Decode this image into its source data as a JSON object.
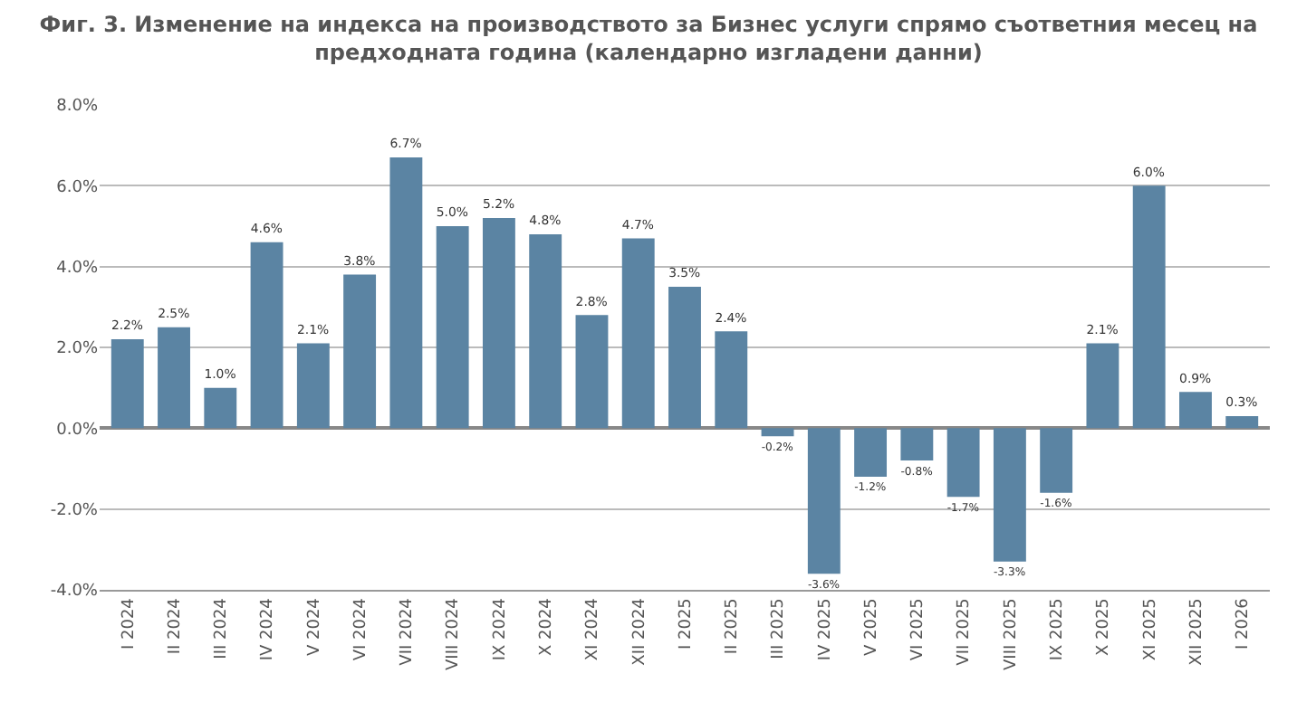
{
  "chart_data": {
    "type": "bar",
    "title": "Фиг. 3. Изменение на индекса на производството за Бизнес услуги спрямо съответния месец на предходната година (календарно изгладени данни)",
    "categories": [
      "I 2024",
      "II 2024",
      "III 2024",
      "IV 2024",
      "V 2024",
      "VI 2024",
      "VII 2024",
      "VIII 2024",
      "IX 2024",
      "X 2024",
      "XI 2024",
      "XII 2024",
      "I 2025",
      "II 2025",
      "III 2025",
      "IV 2025",
      "V 2025",
      "VI 2025",
      "VII 2025",
      "VIII 2025",
      "IX 2025",
      "X 2025",
      "XI 2025",
      "XII 2025",
      "I 2026"
    ],
    "values": [
      2.2,
      2.5,
      1.0,
      4.6,
      2.1,
      3.8,
      6.7,
      5.0,
      5.2,
      4.8,
      2.8,
      4.7,
      3.5,
      2.4,
      -0.2,
      -3.6,
      -1.2,
      -0.8,
      -1.7,
      -3.3,
      -1.6,
      2.1,
      6.0,
      0.9,
      0.3
    ],
    "value_labels": [
      "2.2%",
      "2.5%",
      "1.0%",
      "4.6%",
      "2.1%",
      "3.8%",
      "6.7%",
      "5.0%",
      "5.2%",
      "4.8%",
      "2.8%",
      "4.7%",
      "3.5%",
      "2.4%",
      "-0.2%",
      "-3.6%",
      "-1.2%",
      "-0.8%",
      "-1.7%",
      "-3.3%",
      "-1.6%",
      "2.1%",
      "6.0%",
      "0.9%",
      "0.3%"
    ],
    "color": "#5b84a3",
    "ylim": [
      -4,
      8
    ],
    "yticks": [
      {
        "value": -4,
        "label": "-4.0%"
      },
      {
        "value": -2,
        "label": "-2.0%"
      },
      {
        "value": 0,
        "label": "0.0%"
      },
      {
        "value": 2,
        "label": "2.0%"
      },
      {
        "value": 4,
        "label": "4.0%"
      },
      {
        "value": 6,
        "label": "6.0%"
      },
      {
        "value": 8,
        "label": "8.0%"
      }
    ],
    "grid": "y"
  }
}
